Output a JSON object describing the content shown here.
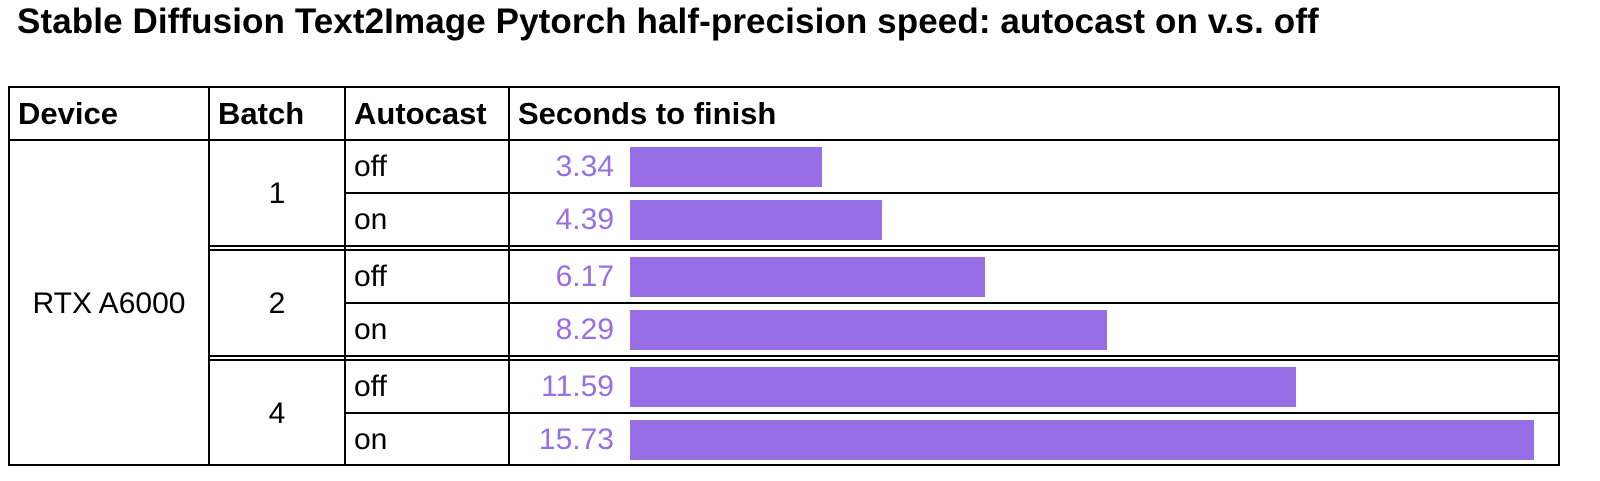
{
  "title": "Stable Diffusion Text2Image Pytorch half-precision speed: autocast on v.s. off",
  "table": {
    "headers": [
      "Device",
      "Batch",
      "Autocast",
      "Seconds to finish"
    ],
    "device": "RTX A6000",
    "groups": [
      {
        "batch": "1",
        "rows": [
          {
            "autocast": "off",
            "seconds": "3.34"
          },
          {
            "autocast": "on",
            "seconds": "4.39"
          }
        ]
      },
      {
        "batch": "2",
        "rows": [
          {
            "autocast": "off",
            "seconds": "6.17"
          },
          {
            "autocast": "on",
            "seconds": "8.29"
          }
        ]
      },
      {
        "batch": "4",
        "rows": [
          {
            "autocast": "off",
            "seconds": "11.59"
          },
          {
            "autocast": "on",
            "seconds": "15.73"
          }
        ]
      }
    ]
  },
  "colors": {
    "bar": "#976ee5",
    "value_text": "#976ee5",
    "border": "#000000"
  },
  "chart_data": {
    "type": "bar",
    "orientation": "horizontal",
    "title": "Stable Diffusion Text2Image Pytorch half-precision speed: autocast on v.s. off",
    "xlabel": "Seconds to finish",
    "ylabel": "",
    "device": "RTX A6000",
    "categories": [
      "Batch 1 / off",
      "Batch 1 / on",
      "Batch 2 / off",
      "Batch 2 / on",
      "Batch 4 / off",
      "Batch 4 / on"
    ],
    "batches": [
      1,
      1,
      2,
      2,
      4,
      4
    ],
    "autocast": [
      "off",
      "on",
      "off",
      "on",
      "off",
      "on"
    ],
    "values": [
      3.34,
      4.39,
      6.17,
      8.29,
      11.59,
      15.73
    ],
    "series": [
      {
        "name": "Autocast off",
        "batches": [
          1,
          2,
          4
        ],
        "values": [
          3.34,
          6.17,
          11.59
        ]
      },
      {
        "name": "Autocast on",
        "batches": [
          1,
          2,
          4
        ],
        "values": [
          4.39,
          8.29,
          15.73
        ]
      }
    ],
    "grid": false,
    "legend": "none",
    "bar_color": "#976ee5"
  }
}
